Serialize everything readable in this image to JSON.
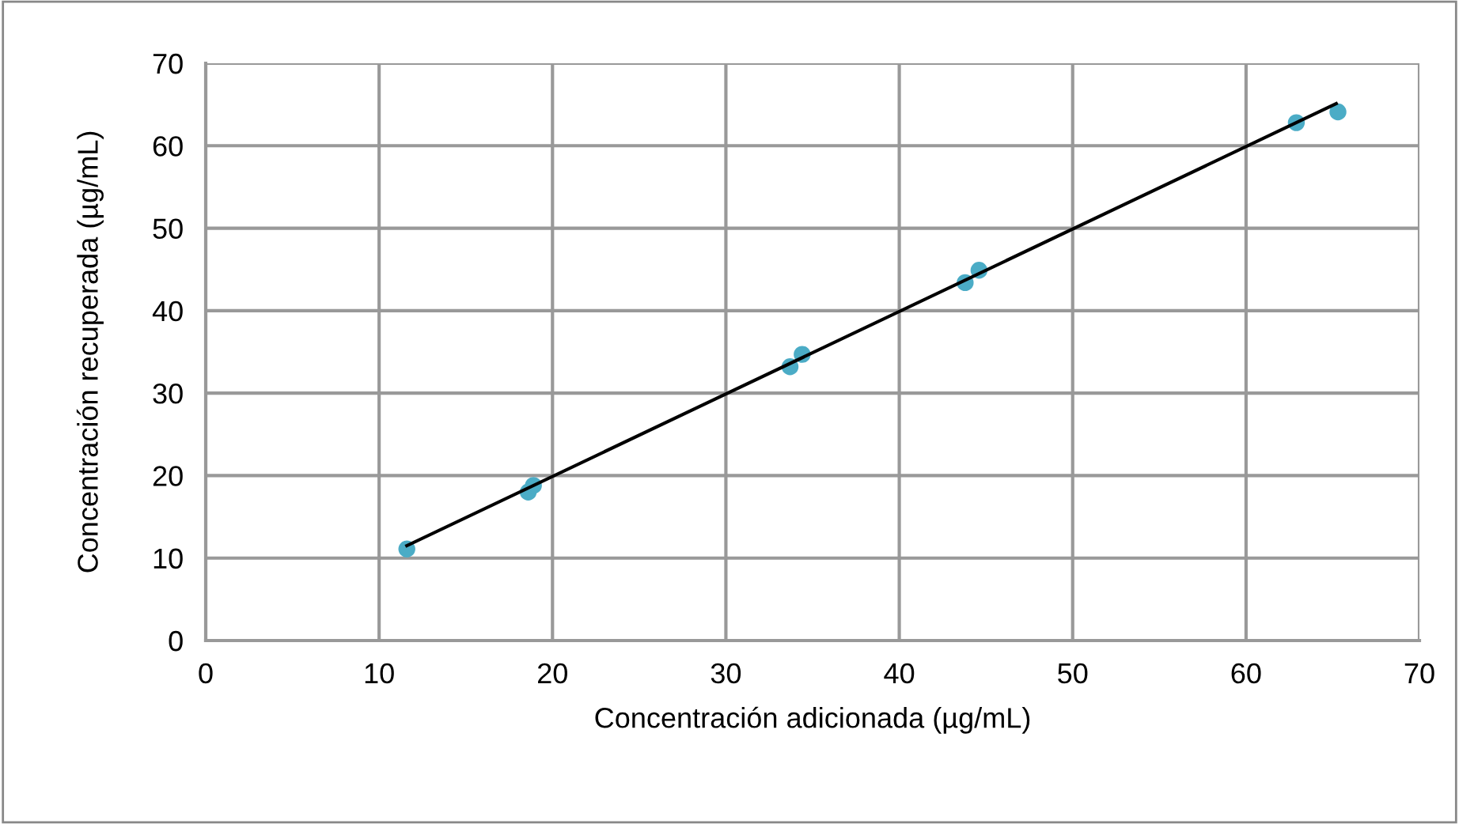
{
  "chart_data": {
    "type": "scatter",
    "xlabel": "Concentración adicionada (µg/mL)",
    "ylabel": "Concentración recuperada (µg/mL)",
    "xlim": [
      0,
      70
    ],
    "ylim": [
      0,
      70
    ],
    "xticks": [
      0,
      10,
      20,
      30,
      40,
      50,
      60,
      70
    ],
    "yticks": [
      0,
      10,
      20,
      30,
      40,
      50,
      60,
      70
    ],
    "grid": true,
    "series": [
      {
        "marker": "circle",
        "color": "#4bacc6",
        "x": [
          11.6,
          18.6,
          18.9,
          33.7,
          34.4,
          43.8,
          44.6,
          62.9,
          65.3
        ],
        "values": [
          11.1,
          18.0,
          18.8,
          33.2,
          34.7,
          43.4,
          44.9,
          62.8,
          64.1
        ]
      },
      {
        "type": "line",
        "color": "#000000",
        "x": [
          11.6,
          65.2
        ],
        "values": [
          11.5,
          65.1
        ],
        "line_style": "solid"
      }
    ]
  }
}
